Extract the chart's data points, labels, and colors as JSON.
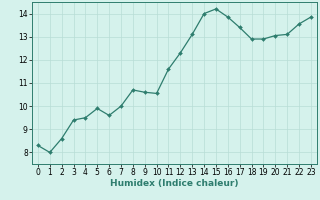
{
  "x": [
    0,
    1,
    2,
    3,
    4,
    5,
    6,
    7,
    8,
    9,
    10,
    11,
    12,
    13,
    14,
    15,
    16,
    17,
    18,
    19,
    20,
    21,
    22,
    23
  ],
  "y": [
    8.3,
    8.0,
    8.6,
    9.4,
    9.5,
    9.9,
    9.6,
    10.0,
    10.7,
    10.6,
    10.55,
    11.6,
    12.3,
    13.1,
    14.0,
    14.2,
    13.85,
    13.4,
    12.9,
    12.9,
    13.05,
    13.1,
    13.55,
    13.85
  ],
  "line_color": "#2e7d6e",
  "marker": "D",
  "marker_size": 2.0,
  "linewidth": 0.9,
  "bg_color": "#d5f2ec",
  "grid_color": "#b8ddd6",
  "xlabel": "Humidex (Indice chaleur)",
  "xlabel_fontsize": 6.5,
  "xlim": [
    -0.5,
    23.5
  ],
  "ylim": [
    7.5,
    14.5
  ],
  "yticks": [
    8,
    9,
    10,
    11,
    12,
    13,
    14
  ],
  "xticks": [
    0,
    1,
    2,
    3,
    4,
    5,
    6,
    7,
    8,
    9,
    10,
    11,
    12,
    13,
    14,
    15,
    16,
    17,
    18,
    19,
    20,
    21,
    22,
    23
  ],
  "tick_fontsize": 5.5
}
